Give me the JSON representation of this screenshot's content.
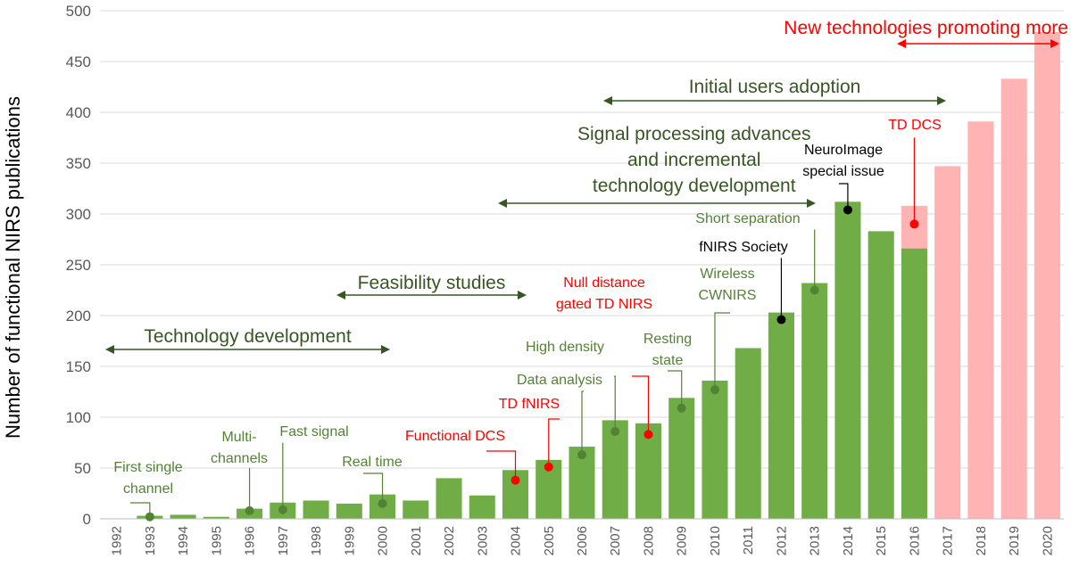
{
  "chart_data": {
    "type": "bar",
    "title": "",
    "xlabel": "",
    "ylabel": "Number of functional NIRS publications",
    "ylim": [
      0,
      500
    ],
    "yticks": [
      0,
      50,
      100,
      150,
      200,
      250,
      300,
      350,
      400,
      450,
      500
    ],
    "grid": true,
    "categories": [
      "1992",
      "1993",
      "1994",
      "1995",
      "1996",
      "1997",
      "1998",
      "1999",
      "2000",
      "2001",
      "2002",
      "2003",
      "2004",
      "2005",
      "2006",
      "2007",
      "2008",
      "2009",
      "2010",
      "2011",
      "2012",
      "2013",
      "2014",
      "2015",
      "2016",
      "2017",
      "2018",
      "2019",
      "2020"
    ],
    "series": [
      {
        "values": [
          0,
          3,
          4,
          2,
          10,
          16,
          18,
          15,
          24,
          18,
          40,
          23,
          48,
          58,
          71,
          97,
          94,
          119,
          136,
          168,
          203,
          232,
          312,
          283,
          266,
          null,
          null,
          null,
          null
        ],
        "color": "#70ad47"
      },
      {
        "values": [
          null,
          null,
          null,
          null,
          null,
          null,
          null,
          null,
          null,
          null,
          null,
          null,
          null,
          null,
          null,
          null,
          null,
          null,
          null,
          null,
          null,
          null,
          null,
          null,
          308,
          347,
          391,
          433,
          479
        ],
        "color": "#ffb3b3"
      }
    ],
    "annotations": [
      {
        "lines": [
          "First single",
          "channel"
        ],
        "year": "1993",
        "value": 2,
        "color": "#548235"
      },
      {
        "lines": [
          "Multi-",
          "channels"
        ],
        "year": "1996",
        "value": 8,
        "color": "#548235"
      },
      {
        "lines": [
          "Fast signal"
        ],
        "year": "1997",
        "value": 9,
        "color": "#548235"
      },
      {
        "lines": [
          "Real time"
        ],
        "year": "2000",
        "value": 15,
        "color": "#548235"
      },
      {
        "lines": [
          "Functional DCS"
        ],
        "year": "2004",
        "value": 38,
        "color": "#ff0000"
      },
      {
        "lines": [
          "TD fNIRS"
        ],
        "year": "2005",
        "value": 51,
        "color": "#ff0000"
      },
      {
        "lines": [
          "Data analysis"
        ],
        "year": "2006",
        "value": 63,
        "color": "#548235"
      },
      {
        "lines": [
          "High density"
        ],
        "year": "2007",
        "value": 86,
        "color": "#548235"
      },
      {
        "lines": [
          "Null distance",
          "gated TD NIRS"
        ],
        "year": "2008",
        "value": 83,
        "color": "#ff0000"
      },
      {
        "lines": [
          "Resting",
          "state"
        ],
        "year": "2009",
        "value": 109,
        "color": "#548235"
      },
      {
        "lines": [
          "Wireless",
          "CWNIRS"
        ],
        "year": "2010",
        "value": 127,
        "color": "#548235"
      },
      {
        "lines": [
          "fNIRS Society"
        ],
        "year": "2012",
        "value": 196,
        "color": "#000000"
      },
      {
        "lines": [
          "Short separation"
        ],
        "year": "2013",
        "value": 225,
        "color": "#548235"
      },
      {
        "lines": [
          "NeuroImage",
          "special issue"
        ],
        "year": "2014",
        "value": 304,
        "color": "#000000"
      },
      {
        "lines": [
          "TD DCS"
        ],
        "year": "2016",
        "value": 290,
        "color": "#ff0000"
      }
    ],
    "spans": [
      {
        "lines": [
          "Technology development"
        ],
        "from": "1992",
        "to": "2000",
        "color": "#375623"
      },
      {
        "lines": [
          "Feasibility studies"
        ],
        "from": "1999",
        "to": "2004",
        "color": "#375623"
      },
      {
        "lines": [
          "Signal processing advances",
          "and incremental",
          "technology development"
        ],
        "from": "2004",
        "to": "2013",
        "color": "#375623"
      },
      {
        "lines": [
          "Initial users adoption"
        ],
        "from": "2007",
        "to": "2016",
        "color": "#375623"
      },
      {
        "lines": [
          "New technologies promoting more applications"
        ],
        "from": "2016",
        "to": "2020",
        "color": "#ff0000"
      }
    ]
  }
}
